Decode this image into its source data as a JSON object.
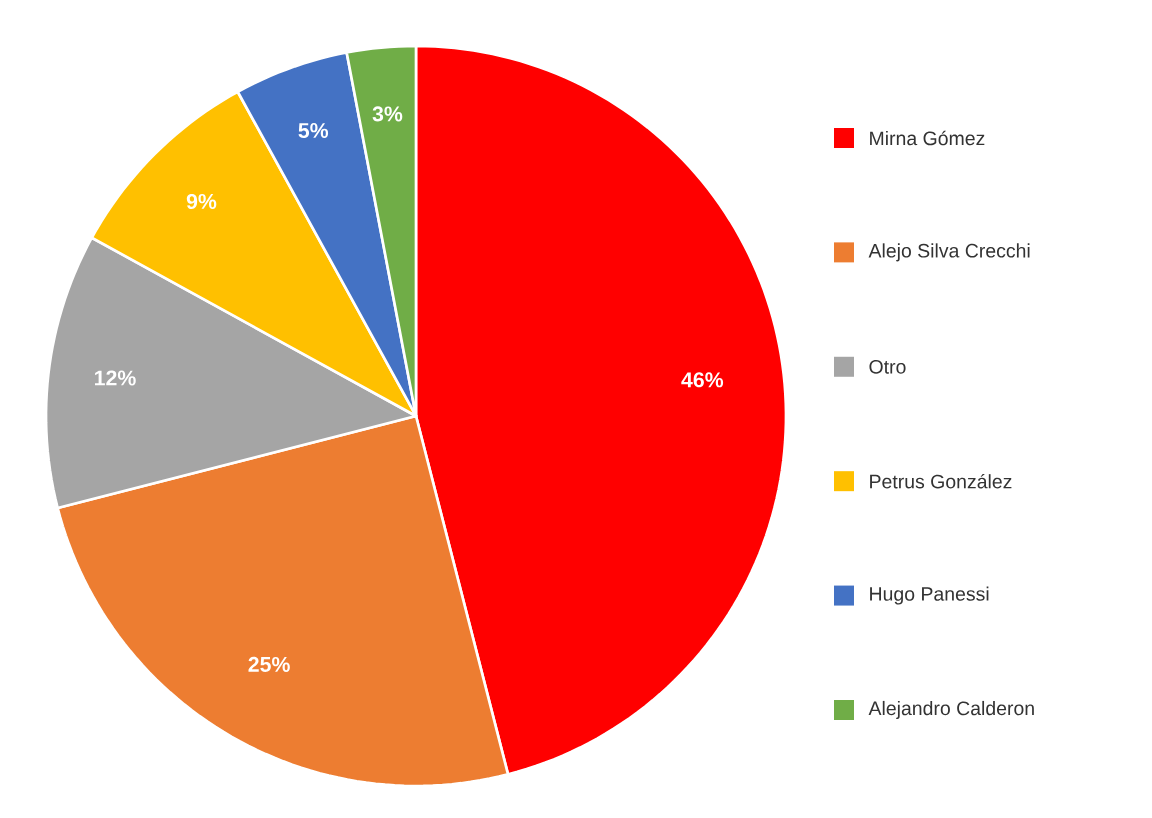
{
  "chart_data": {
    "type": "pie",
    "categories": [
      "Mirna Gómez",
      "Alejo Silva Crecchi",
      "Otro",
      "Petrus González",
      "Hugo Panessi",
      "Alejandro Calderon"
    ],
    "values": [
      46,
      25,
      12,
      9,
      5,
      3
    ],
    "colors": [
      "#ff0000",
      "#ed7d31",
      "#a5a5a5",
      "#ffc000",
      "#4472c4",
      "#70ad47"
    ],
    "value_labels": [
      "46%",
      "25%",
      "12%",
      "9%",
      "5%",
      "3%"
    ],
    "legend": "right"
  }
}
